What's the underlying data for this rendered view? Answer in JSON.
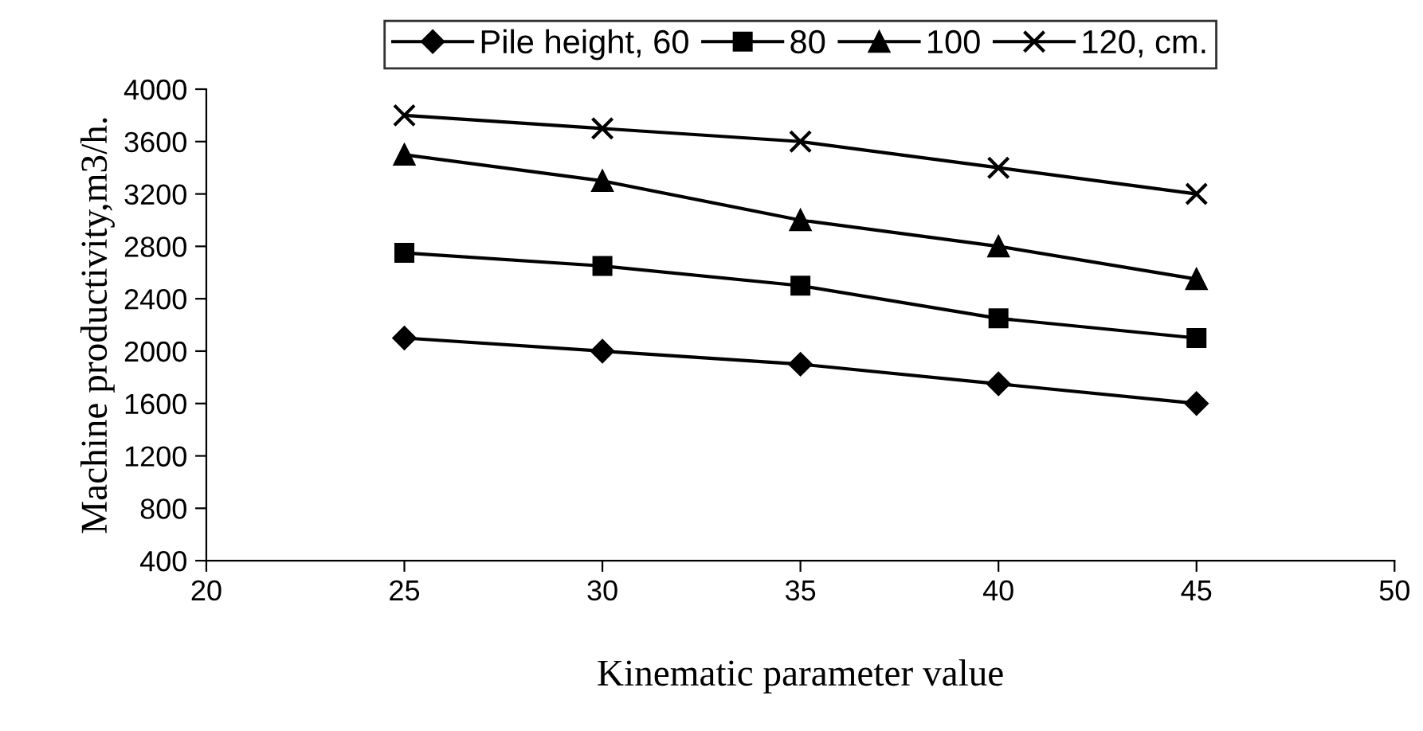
{
  "chart_data": {
    "type": "line",
    "xlabel": "Kinematic parameter value",
    "ylabel": "Machine productivity,m3/h.",
    "x": [
      25,
      30,
      35,
      40,
      45
    ],
    "series": [
      {
        "name": "Pile height, 60",
        "color": "#000000",
        "marker": "diamond",
        "values": [
          2100,
          2000,
          1900,
          1750,
          1600
        ]
      },
      {
        "name": "80",
        "color": "#000000",
        "marker": "square",
        "values": [
          2750,
          2650,
          2500,
          2250,
          2100
        ]
      },
      {
        "name": "100",
        "color": "#000000",
        "marker": "triangle",
        "values": [
          3500,
          3300,
          3000,
          2800,
          2550
        ]
      },
      {
        "name": "120, cm.",
        "color": "#000000",
        "marker": "cross",
        "values": [
          3800,
          3700,
          3600,
          3400,
          3200
        ]
      }
    ],
    "xlim": [
      20,
      50
    ],
    "xticks": [
      20,
      25,
      30,
      35,
      40,
      45,
      50
    ],
    "ylim": [
      400,
      4000
    ],
    "yticks": [
      400,
      800,
      1200,
      1600,
      2000,
      2400,
      2800,
      3200,
      3600,
      4000
    ],
    "grid": false,
    "legend": "top",
    "line_style": "solid"
  }
}
